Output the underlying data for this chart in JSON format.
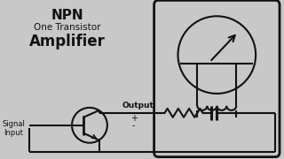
{
  "bg_color": "#c8c8c8",
  "line_color": "#111111",
  "text_color": "#111111",
  "title_npn": "NPN",
  "title_sub": "One Transistor",
  "title_amp": "Amplifier",
  "label_output": "Output",
  "label_signal": "Signal\nInput",
  "label_plus": "+",
  "label_minus": "-",
  "fig_w": 3.2,
  "fig_h": 1.8,
  "dpi": 100
}
